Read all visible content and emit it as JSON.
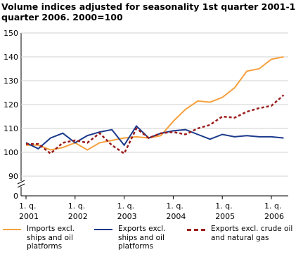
{
  "chart_data": {
    "type": "line",
    "title": "Volume indices adjusted for seasonality 1st quarter 2001-1 quarter 2006. 2000=100",
    "categories": [
      "1. q. 2001",
      null,
      null,
      null,
      "1. q. 2002",
      null,
      null,
      null,
      "1. q. 2003",
      null,
      null,
      null,
      "1. q. 2004",
      null,
      null,
      null,
      "1. q. 2005",
      null,
      null,
      null,
      "1. q. 2006",
      null
    ],
    "series": [
      {
        "name": "Imports excl. ships and oil platforms",
        "color": "#f5a03c",
        "style": "solid",
        "values": [
          103,
          103,
          101,
          102,
          104,
          101,
          104,
          105,
          106,
          106.5,
          106,
          107,
          113,
          118,
          121.5,
          121,
          123,
          127,
          134,
          135,
          139,
          140
        ]
      },
      {
        "name": "Exports excl. ships and oil platforms",
        "color": "#1b3a8c",
        "style": "solid",
        "values": [
          104,
          101.5,
          106,
          108,
          104,
          107,
          108.5,
          109.5,
          103,
          111,
          106,
          108,
          109,
          109.5,
          107.5,
          105.5,
          107.5,
          106.5,
          107,
          106.5,
          106.5,
          106
        ]
      },
      {
        "name": "Exports excl. crude oil and natural gas",
        "color": "#9b1c1c",
        "style": "dashed",
        "values": [
          103.5,
          103.5,
          99.5,
          104,
          105,
          104,
          108,
          103,
          99.5,
          110,
          106,
          108,
          108.5,
          107.5,
          110,
          111.5,
          115,
          114.5,
          117,
          118.5,
          119.5,
          124
        ]
      }
    ],
    "ylim": [
      90,
      150
    ],
    "yticks": [
      0,
      90,
      100,
      110,
      120,
      130,
      140,
      150
    ],
    "axis_break": true,
    "grid": true
  }
}
